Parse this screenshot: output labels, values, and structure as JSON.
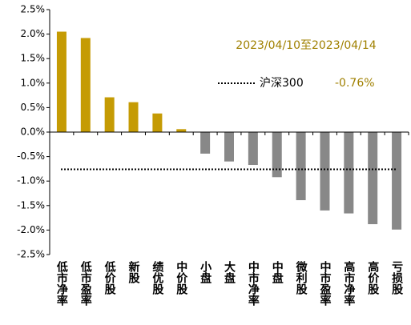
{
  "chart_data": {
    "type": "bar",
    "annotation": "2023/04/10至2023/04/14",
    "categories": [
      "低市净率",
      "低市盈率",
      "低价股",
      "新股",
      "绩优股",
      "中价股",
      "小盘",
      "大盘",
      "中市净率",
      "中盘",
      "微利股",
      "中市盈率",
      "高市净率",
      "高价股",
      "亏损股"
    ],
    "values": [
      2.05,
      1.92,
      0.71,
      0.61,
      0.38,
      0.06,
      -0.44,
      -0.6,
      -0.67,
      -0.92,
      -1.39,
      -1.6,
      -1.66,
      -1.88,
      -1.99
    ],
    "positive_color": "#c59b04",
    "negative_color": "#888888",
    "ylim": [
      -2.5,
      2.5
    ],
    "yticks": [
      {
        "value": -2.5,
        "label": "-2.5%"
      },
      {
        "value": -2.0,
        "label": "-2.0%"
      },
      {
        "value": -1.5,
        "label": "-1.5%"
      },
      {
        "value": -1.0,
        "label": "-1.0%"
      },
      {
        "value": -0.5,
        "label": "-0.5%"
      },
      {
        "value": 0,
        "label": "0.0%"
      },
      {
        "value": 0.5,
        "label": "0.5%"
      },
      {
        "value": 1.0,
        "label": "1.0%"
      },
      {
        "value": 1.5,
        "label": "1.5%"
      },
      {
        "value": 2.0,
        "label": "2.0%"
      },
      {
        "value": 2.5,
        "label": "2.5%"
      }
    ],
    "reference": {
      "name": "沪深300",
      "value": -0.76,
      "value_label": "-0.76%",
      "color": "#000000"
    },
    "grid": false
  }
}
